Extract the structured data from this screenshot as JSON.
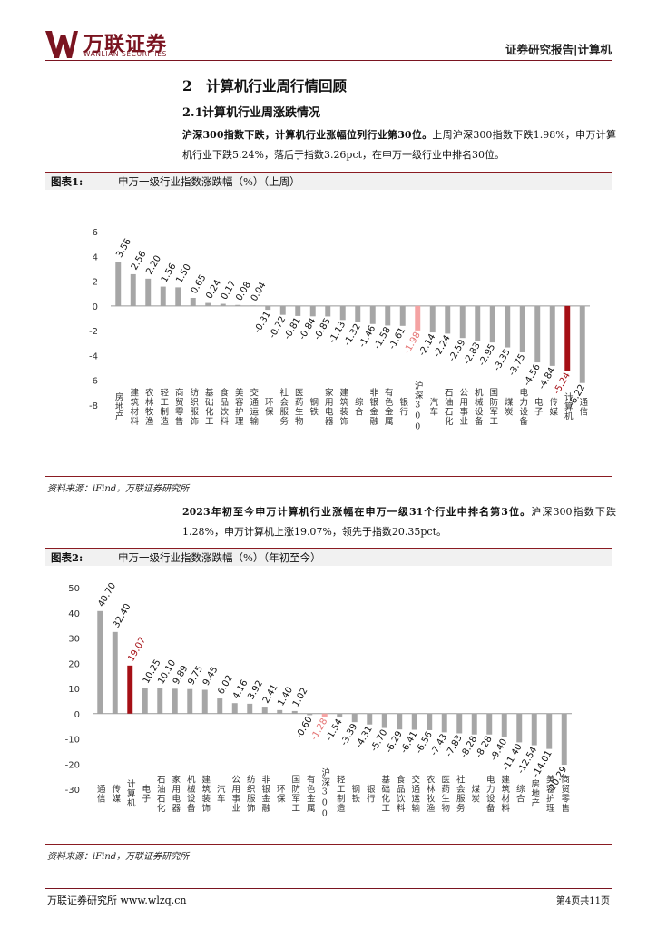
{
  "header": {
    "brand": "万联证券",
    "brand_en": "WANLIAN SECURITIES",
    "report_type": "证券研究报告|计算机"
  },
  "section": {
    "number": "2",
    "title": "计算机行业周行情回顾"
  },
  "subsection": {
    "number": "2.1",
    "title": "计算机行业周涨跌情况"
  },
  "para1": {
    "bold": "沪深300指数下跌，计算机行业涨幅位列行业第30位。",
    "text": "上周沪深300指数下跌1.98%，申万计算机行业下跌5.24%，落后于指数3.26pct，在申万一级行业中排名30位。"
  },
  "figure1": {
    "label": "图表1:",
    "title": "申万一级行业指数涨跌幅（%）（上周）",
    "source": "资料来源：iFind，万联证券研究所"
  },
  "para2": {
    "bold": "2023年初至今申万计算机行业涨幅在申万一级31个行业中排名第3位。",
    "text": "沪深300指数下跌1.28%，申万计算机上涨19.07%，领先于指数20.35pct。"
  },
  "figure2": {
    "label": "图表2:",
    "title": "申万一级行业指数涨跌幅（%）（年初至今）",
    "source": "资料来源：iFind，万联证券研究所"
  },
  "footer": {
    "left": "万联证券研究所 www.wlzq.cn",
    "right": "第4页共11页"
  },
  "colors": {
    "bar": "#a6a6a6",
    "highlight": "#a50f15",
    "index": "#f4a3a3",
    "brand": "#7a1420"
  },
  "chart_data": [
    {
      "type": "bar",
      "title": "申万一级行业指数涨跌幅（%）（上周）",
      "ylim": [
        -8,
        6
      ],
      "yticks": [
        6,
        4,
        2,
        0,
        -2,
        -4,
        -6,
        -8
      ],
      "categories": [
        "房地产",
        "建筑材料",
        "农林牧渔",
        "轻工制造",
        "商贸零售",
        "纺织服饰",
        "基础化工",
        "食品饮料",
        "美容护理",
        "交通运输",
        "环保",
        "社会服务",
        "医药生物",
        "钢铁",
        "家用电器",
        "建筑装饰",
        "综合",
        "非银金融",
        "有色金属",
        "银行",
        "沪深300",
        "汽车",
        "石油石化",
        "公用事业",
        "机械设备",
        "国防军工",
        "煤炭",
        "电力设备",
        "电子",
        "传媒",
        "计算机",
        "通信"
      ],
      "values": [
        3.56,
        2.56,
        2.2,
        1.56,
        1.5,
        0.65,
        0.24,
        0.17,
        0.08,
        0.04,
        -0.31,
        -0.72,
        -0.81,
        -0.84,
        -0.85,
        -1.13,
        -1.32,
        -1.46,
        -1.58,
        -1.61,
        -1.98,
        -2.14,
        -2.24,
        -2.59,
        -2.83,
        -2.95,
        -3.35,
        -3.75,
        -4.56,
        -4.84,
        -5.24,
        -6.22
      ],
      "labels": [
        "3.56",
        "2.56",
        "2.20",
        "1.56",
        "1.50",
        "0.65",
        "0.24",
        "0.17",
        "0.08",
        "0.04",
        "-0.31",
        "-0.72",
        "-0.81",
        "-0.84",
        "-0.85",
        "-1.13",
        "-1.32",
        "-1.46",
        "-1.58",
        "-1.61",
        "-1.98",
        "-2.14",
        "-2.24",
        "-2.59",
        "-2.83",
        "-2.95",
        "-3.35",
        "-3.75",
        "-4.56",
        "-4.84",
        "-5.24",
        "-6.22"
      ],
      "highlight": "计算机",
      "index": "沪深300"
    },
    {
      "type": "bar",
      "title": "申万一级行业指数涨跌幅（%）（年初至今）",
      "ylim": [
        -30,
        50
      ],
      "yticks": [
        50,
        40,
        30,
        20,
        10,
        0,
        -10,
        -20,
        -30
      ],
      "categories": [
        "通信",
        "传媒",
        "计算机",
        "电子",
        "石油石化",
        "家用电器",
        "机械设备",
        "建筑装饰",
        "汽车",
        "公用事业",
        "纺织服饰",
        "非银金融",
        "环保",
        "国防军工",
        "有色金属",
        "沪深300",
        "轻工制造",
        "钢铁",
        "银行",
        "基础化工",
        "食品饮料",
        "交通运输",
        "农林牧渔",
        "医药生物",
        "社会服务",
        "煤炭",
        "电力设备",
        "建筑材料",
        "综合",
        "房地产",
        "美容护理",
        "商贸零售"
      ],
      "values": [
        40.7,
        32.4,
        19.07,
        10.25,
        10.1,
        9.89,
        9.75,
        9.45,
        6.02,
        4.16,
        3.92,
        2.41,
        1.4,
        1.02,
        -0.6,
        -1.28,
        -1.54,
        -3.39,
        -4.31,
        -5.7,
        -6.29,
        -6.41,
        -6.56,
        -7.43,
        -7.83,
        -8.28,
        -8.28,
        -9.4,
        -11.4,
        -12.54,
        -14.01,
        -20.29
      ],
      "labels": [
        "40.70",
        "32.40",
        "19.07",
        "10.25",
        "10.10",
        "9.89",
        "9.75",
        "9.45",
        "6.02",
        "4.16",
        "3.92",
        "2.41",
        "1.40",
        "1.02",
        "-0.60",
        "-1.28",
        "-1.54",
        "-3.39",
        "-4.31",
        "-5.70",
        "-6.29",
        "-6.41",
        "-6.56",
        "-7.43",
        "-7.83",
        "-8.28",
        "-8.28",
        "-9.40",
        "-11.40",
        "-12.54",
        "-14.01",
        "-20.29"
      ],
      "highlight": "计算机",
      "index": "沪深300"
    }
  ]
}
